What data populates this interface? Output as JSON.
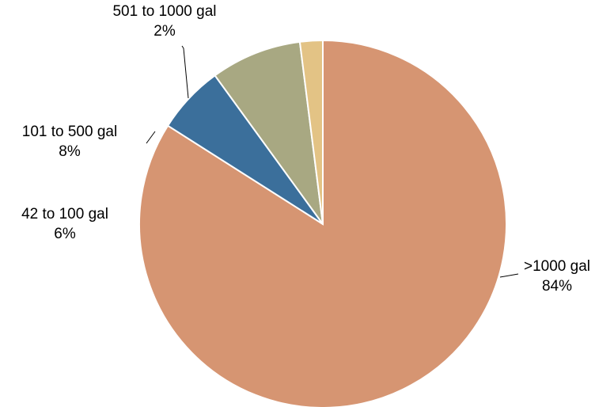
{
  "chart_data": {
    "type": "pie",
    "title": "",
    "start_angle_deg": 0,
    "direction": "clockwise",
    "slices": [
      {
        "label": ">1000 gal",
        "value": 84,
        "value_label": "84%",
        "color": "#D69572"
      },
      {
        "label": "42 to 100 gal",
        "value": 6,
        "value_label": "6%",
        "color": "#3B6F9B"
      },
      {
        "label": "101 to 500 gal",
        "value": 8,
        "value_label": "8%",
        "color": "#A8A882"
      },
      {
        "label": "501 to 1000 gal",
        "value": 2,
        "value_label": "2%",
        "color": "#E3C385"
      }
    ],
    "legend": "none",
    "data_labels": "outside"
  }
}
